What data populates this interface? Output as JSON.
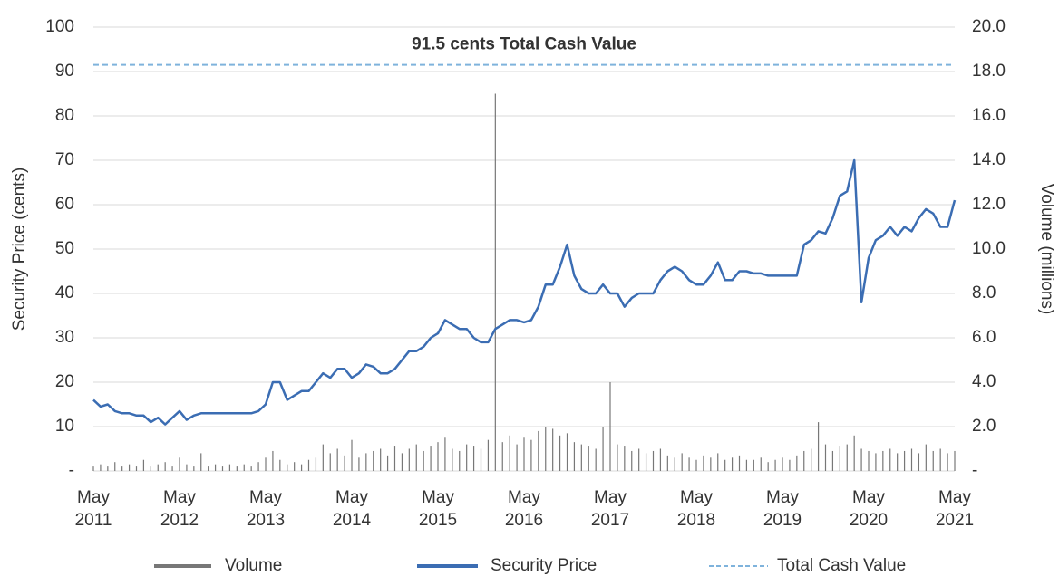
{
  "chart_data": {
    "type": "line",
    "x": [
      "2011-05",
      "2011-06",
      "2011-07",
      "2011-08",
      "2011-09",
      "2011-10",
      "2011-11",
      "2011-12",
      "2012-01",
      "2012-02",
      "2012-03",
      "2012-04",
      "2012-05",
      "2012-06",
      "2012-07",
      "2012-08",
      "2012-09",
      "2012-10",
      "2012-11",
      "2012-12",
      "2013-01",
      "2013-02",
      "2013-03",
      "2013-04",
      "2013-05",
      "2013-06",
      "2013-07",
      "2013-08",
      "2013-09",
      "2013-10",
      "2013-11",
      "2013-12",
      "2014-01",
      "2014-02",
      "2014-03",
      "2014-04",
      "2014-05",
      "2014-06",
      "2014-07",
      "2014-08",
      "2014-09",
      "2014-10",
      "2014-11",
      "2014-12",
      "2015-01",
      "2015-02",
      "2015-03",
      "2015-04",
      "2015-05",
      "2015-06",
      "2015-07",
      "2015-08",
      "2015-09",
      "2015-10",
      "2015-11",
      "2015-12",
      "2016-01",
      "2016-02",
      "2016-03",
      "2016-04",
      "2016-05",
      "2016-06",
      "2016-07",
      "2016-08",
      "2016-09",
      "2016-10",
      "2016-11",
      "2016-12",
      "2017-01",
      "2017-02",
      "2017-03",
      "2017-04",
      "2017-05",
      "2017-06",
      "2017-07",
      "2017-08",
      "2017-09",
      "2017-10",
      "2017-11",
      "2017-12",
      "2018-01",
      "2018-02",
      "2018-03",
      "2018-04",
      "2018-05",
      "2018-06",
      "2018-07",
      "2018-08",
      "2018-09",
      "2018-10",
      "2018-11",
      "2018-12",
      "2019-01",
      "2019-02",
      "2019-03",
      "2019-04",
      "2019-05",
      "2019-06",
      "2019-07",
      "2019-08",
      "2019-09",
      "2019-10",
      "2019-11",
      "2019-12",
      "2020-01",
      "2020-02",
      "2020-03",
      "2020-04",
      "2020-05",
      "2020-06",
      "2020-07",
      "2020-08",
      "2020-09",
      "2020-10",
      "2020-11",
      "2020-12",
      "2021-01",
      "2021-02",
      "2021-03",
      "2021-04",
      "2021-05"
    ],
    "series": [
      {
        "name": "Volume",
        "color": "#777777",
        "axis": "y2",
        "type": "bar",
        "values": [
          0.2,
          0.3,
          0.2,
          0.4,
          0.2,
          0.3,
          0.2,
          0.5,
          0.2,
          0.3,
          0.4,
          0.2,
          0.6,
          0.3,
          0.2,
          0.8,
          0.2,
          0.3,
          0.2,
          0.3,
          0.2,
          0.3,
          0.2,
          0.4,
          0.6,
          0.9,
          0.5,
          0.3,
          0.4,
          0.3,
          0.5,
          0.6,
          1.2,
          0.8,
          1.0,
          0.7,
          1.4,
          0.6,
          0.8,
          0.9,
          1.0,
          0.7,
          1.1,
          0.8,
          1.0,
          1.2,
          0.9,
          1.1,
          1.3,
          1.5,
          1.0,
          0.9,
          1.2,
          1.1,
          1.0,
          1.4,
          17.0,
          1.3,
          1.6,
          1.2,
          1.5,
          1.4,
          1.8,
          2.0,
          1.9,
          1.6,
          1.7,
          1.3,
          1.2,
          1.1,
          1.0,
          2.0,
          4.0,
          1.2,
          1.1,
          0.9,
          1.0,
          0.8,
          0.9,
          1.0,
          0.7,
          0.6,
          0.8,
          0.6,
          0.5,
          0.7,
          0.6,
          0.8,
          0.5,
          0.6,
          0.7,
          0.5,
          0.5,
          0.6,
          0.4,
          0.5,
          0.6,
          0.5,
          0.7,
          0.9,
          1.0,
          2.2,
          1.2,
          0.9,
          1.1,
          1.2,
          1.6,
          1.0,
          0.9,
          0.8,
          0.9,
          1.0,
          0.8,
          0.9,
          1.0,
          0.8,
          1.2,
          0.9,
          1.0,
          0.8,
          0.9
        ]
      },
      {
        "name": "Security Price",
        "color": "#3b6db3",
        "axis": "y",
        "values": [
          16,
          14.5,
          15,
          13.5,
          13,
          13,
          12.5,
          12.5,
          11,
          12,
          10.5,
          12,
          13.5,
          11.5,
          12.5,
          13,
          13,
          13,
          13,
          13,
          13,
          13,
          13,
          13.5,
          15,
          20,
          20,
          16,
          17,
          18,
          18,
          20,
          22,
          21,
          23,
          23,
          21,
          22,
          24,
          23.5,
          22,
          22,
          23,
          25,
          27,
          27,
          28,
          30,
          31,
          34,
          33,
          32,
          32,
          30,
          29,
          29,
          32,
          33,
          34,
          34,
          33.5,
          34,
          37,
          42,
          42,
          46,
          51,
          44,
          41,
          40,
          40,
          42,
          40,
          40,
          37,
          39,
          40,
          40,
          40,
          43,
          45,
          46,
          45,
          43,
          42,
          42,
          44,
          47,
          43,
          43,
          45,
          45,
          44.5,
          44.5,
          44,
          44,
          44,
          44,
          44,
          51,
          52,
          54,
          53.5,
          57,
          62,
          63,
          70,
          38,
          48,
          52,
          53,
          55,
          53,
          55,
          54,
          57,
          59,
          58,
          55,
          55,
          61
        ]
      }
    ],
    "reference_line": {
      "name": "Total Cash Value",
      "value": 91.5,
      "color": "#7fb3dc",
      "label": "91.5 cents Total Cash Value"
    },
    "y_label": "Security Price (cents)",
    "y2_label": "Volume (millions)",
    "xlim": [
      "2011-05",
      "2021-05"
    ],
    "xticks": [
      {
        "value": "2011-05",
        "label": "May 2011"
      },
      {
        "value": "2012-05",
        "label": "May 2012"
      },
      {
        "value": "2013-05",
        "label": "May 2013"
      },
      {
        "value": "2014-05",
        "label": "May 2014"
      },
      {
        "value": "2015-05",
        "label": "May 2015"
      },
      {
        "value": "2016-05",
        "label": "May 2016"
      },
      {
        "value": "2017-05",
        "label": "May 2017"
      },
      {
        "value": "2018-05",
        "label": "May 2018"
      },
      {
        "value": "2019-05",
        "label": "May 2019"
      },
      {
        "value": "2020-05",
        "label": "May 2020"
      },
      {
        "value": "2021-05",
        "label": "May 2021"
      }
    ],
    "ylim": [
      0,
      100
    ],
    "yticks": [
      {
        "value": 0,
        "label": "-"
      },
      10,
      20,
      30,
      40,
      50,
      60,
      70,
      80,
      90,
      100
    ],
    "y2lim": [
      0,
      20
    ],
    "y2ticks": [
      {
        "value": 0,
        "label": "-"
      },
      {
        "value": 2,
        "label": "2.0"
      },
      {
        "value": 4,
        "label": "4.0"
      },
      {
        "value": 6,
        "label": "6.0"
      },
      {
        "value": 8,
        "label": "8.0"
      },
      {
        "value": 10,
        "label": "10.0"
      },
      {
        "value": 12,
        "label": "12.0"
      },
      {
        "value": 14,
        "label": "14.0"
      },
      {
        "value": 16,
        "label": "16.0"
      },
      {
        "value": 18,
        "label": "18.0"
      },
      {
        "value": 20,
        "label": "20.0"
      }
    ],
    "grid": true
  }
}
